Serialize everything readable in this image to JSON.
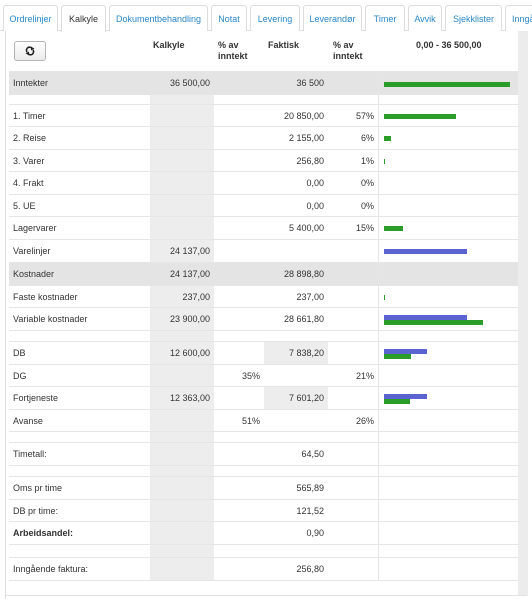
{
  "tabs": [
    {
      "label": "Ordrelinjer",
      "active": false
    },
    {
      "label": "Kalkyle",
      "active": true
    },
    {
      "label": "Dokumentbehandling",
      "active": false
    },
    {
      "label": "Notat",
      "active": false
    },
    {
      "label": "Levering",
      "active": false
    },
    {
      "label": "Leverandør",
      "active": false
    },
    {
      "label": "Timer",
      "active": false
    },
    {
      "label": "Avvik",
      "active": false
    },
    {
      "label": "Sjekklister",
      "active": false
    },
    {
      "label": "Inngå",
      "active": false
    }
  ],
  "toolbar": {
    "reset_icon": "reset-icon"
  },
  "columns": {
    "kalkyle": "Kalkyle",
    "kalk_pct": "% av\ninntekt",
    "faktisk": "Faktisk",
    "fakt_pct": "% av\ninntekt",
    "range": "0,00 - 36 500,00"
  },
  "rows": [
    {
      "label": "Inntekter",
      "kalkyle": "36 500,00",
      "kpct": "",
      "faktisk": "36 500",
      "fpct": "",
      "bars": [
        {
          "color": "green",
          "fraction": 1.0
        }
      ]
    },
    {
      "label": "1. Timer",
      "kalkyle": "",
      "kpct": "",
      "faktisk": "20 850,00",
      "fpct": "57%",
      "bars": [
        {
          "color": "green",
          "fraction": 0.5712
        }
      ]
    },
    {
      "label": "2. Reise",
      "kalkyle": "",
      "kpct": "",
      "faktisk": "2 155,00",
      "fpct": "6%",
      "bars": [
        {
          "color": "green",
          "fraction": 0.059
        }
      ]
    },
    {
      "label": "3. Varer",
      "kalkyle": "",
      "kpct": "",
      "faktisk": "256,80",
      "fpct": "1%",
      "bars": [
        {
          "color": "green",
          "fraction": 0.007
        }
      ]
    },
    {
      "label": "4. Frakt",
      "kalkyle": "",
      "kpct": "",
      "faktisk": "0,00",
      "fpct": "0%",
      "bars": []
    },
    {
      "label": "5. UE",
      "kalkyle": "",
      "kpct": "",
      "faktisk": "0,00",
      "fpct": "0%",
      "bars": []
    },
    {
      "label": "Lagervarer",
      "kalkyle": "",
      "kpct": "",
      "faktisk": "5 400,00",
      "fpct": "15%",
      "bars": [
        {
          "color": "green",
          "fraction": 0.148
        }
      ]
    },
    {
      "label": "Varelinjer",
      "kalkyle": "24 137,00",
      "kpct": "",
      "faktisk": "",
      "fpct": "",
      "bars": [
        {
          "color": "blue",
          "fraction": 0.6613
        }
      ]
    },
    {
      "label": "Kostnader",
      "kalkyle": "24 137,00",
      "kpct": "",
      "faktisk": "28 898,80",
      "fpct": "",
      "bars": []
    },
    {
      "label": "Faste kostnader",
      "kalkyle": "237,00",
      "kpct": "",
      "faktisk": "237,00",
      "fpct": "",
      "bars": [
        {
          "color": "green",
          "fraction": 0.0065
        }
      ]
    },
    {
      "label": "Variable kostnader",
      "kalkyle": "23 900,00",
      "kpct": "",
      "faktisk": "28 661,80",
      "fpct": "",
      "bars": [
        {
          "color": "blue",
          "fraction": 0.6548
        },
        {
          "color": "green",
          "fraction": 0.7853
        }
      ]
    },
    {
      "label": "DB",
      "kalkyle": "12 600,00",
      "kpct": "",
      "faktisk": "7 838,20",
      "fpct": "",
      "bars": [
        {
          "color": "blue",
          "fraction": 0.3452
        },
        {
          "color": "green",
          "fraction": 0.2147
        }
      ]
    },
    {
      "label": "DG",
      "kalkyle": "",
      "kpct": "35%",
      "faktisk": "",
      "fpct": "21%",
      "bars": []
    },
    {
      "label": "Fortjeneste",
      "kalkyle": "12 363,00",
      "kpct": "",
      "faktisk": "7 601,20",
      "fpct": "",
      "bars": [
        {
          "color": "blue",
          "fraction": 0.3387
        },
        {
          "color": "green",
          "fraction": 0.2083
        }
      ]
    },
    {
      "label": "Avanse",
      "kalkyle": "",
      "kpct": "51%",
      "faktisk": "",
      "fpct": "26%",
      "bars": []
    },
    {
      "label": "Timetall:",
      "kalkyle": "",
      "kpct": "",
      "faktisk": "64,50",
      "fpct": "",
      "bars": []
    },
    {
      "label": "Oms pr time",
      "kalkyle": "",
      "kpct": "",
      "faktisk": "565,89",
      "fpct": "",
      "bars": []
    },
    {
      "label": "DB pr time:",
      "kalkyle": "",
      "kpct": "",
      "faktisk": "121,52",
      "fpct": "",
      "bars": []
    },
    {
      "label": "Arbeidsandel:",
      "kalkyle": "",
      "kpct": "",
      "faktisk": "0,90",
      "fpct": "",
      "bars": []
    },
    {
      "label": "Inngående faktura:",
      "kalkyle": "",
      "kpct": "",
      "faktisk": "256,80",
      "fpct": "",
      "bars": []
    }
  ],
  "colors": {
    "green": "#2a9c2a",
    "blue": "#5a63d0",
    "tab_link": "#2a87c8"
  }
}
